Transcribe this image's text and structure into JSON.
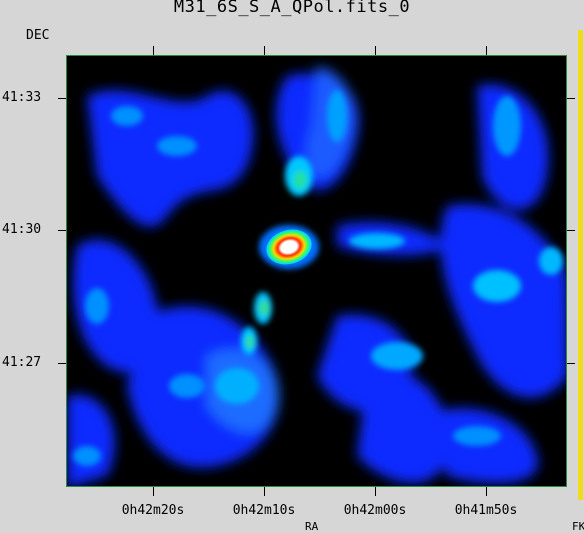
{
  "window": {
    "title": "M31_6S_S_A_QPol.fits_0"
  },
  "axes": {
    "y_title": "DEC",
    "x_title": "RA",
    "corner_label": "FK",
    "y_ticks": [
      "41:33",
      "41:30",
      "41:27"
    ],
    "x_ticks": [
      "0h42m20s",
      "0h42m10s",
      "0h42m00s",
      "0h41m50s"
    ]
  },
  "colors": {
    "background": "#d6d6d6",
    "plot_background": "#000000",
    "colormap_low": "#0000ff",
    "colormap_mid": "#00e5ff",
    "colormap_high": "#ffffff",
    "accent_strip": "#f1d91b"
  },
  "image": {
    "colormap": "black-blue-cyan-green-yellow-red-white",
    "brightest_source_color": "#ffffff"
  }
}
